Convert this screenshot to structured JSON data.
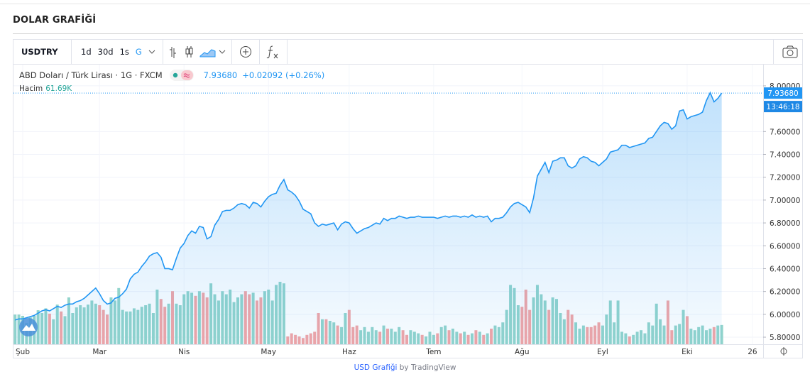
{
  "header": {
    "title": "DOLAR GRAFİĞİ"
  },
  "toolbar": {
    "symbol": "USDTRY",
    "intervals": [
      "1d",
      "30d",
      "1s",
      "G"
    ],
    "active_interval": 3
  },
  "chart_data": {
    "type": "area",
    "title": "ABD Doları / Türk Lirası · 1G · FXCM",
    "last_label": "7.93680",
    "change_label": "+0.02092 (+0.26%)",
    "time_label": "13:46:18",
    "categories": [
      null,
      null,
      "Şub",
      null,
      null,
      null,
      null,
      null,
      null,
      null,
      null,
      null,
      null,
      null,
      null,
      null,
      null,
      null,
      null,
      null,
      null,
      null,
      "Mar",
      null,
      null,
      null,
      null,
      null,
      null,
      null,
      null,
      null,
      null,
      null,
      null,
      null,
      null,
      null,
      null,
      null,
      null,
      null,
      null,
      null,
      "Nis",
      null,
      null,
      null,
      null,
      null,
      null,
      null,
      null,
      null,
      null,
      null,
      null,
      null,
      null,
      null,
      null,
      null,
      null,
      null,
      null,
      null,
      "May",
      null,
      null,
      null,
      null,
      null,
      null,
      null,
      null,
      null,
      null,
      null,
      null,
      null,
      null,
      null,
      null,
      null,
      null,
      null,
      null,
      "Haz",
      null,
      null,
      null,
      null,
      null,
      null,
      null,
      null,
      null,
      null,
      null,
      null,
      null,
      null,
      null,
      null,
      null,
      null,
      null,
      null,
      null,
      "Tem",
      null,
      null,
      null,
      null,
      null,
      null,
      null,
      null,
      null,
      null,
      null,
      null,
      null,
      null,
      null,
      null,
      null,
      null,
      null,
      null,
      null,
      null,
      "Ağu",
      null,
      null,
      null,
      null,
      null,
      null,
      null,
      null,
      null,
      null,
      null,
      null,
      null,
      null,
      null,
      null,
      null,
      null,
      null,
      null,
      "Eyl",
      null,
      null,
      null,
      null,
      null,
      null,
      null,
      null,
      null,
      null,
      null,
      null,
      null,
      null,
      null,
      null,
      null,
      null,
      null,
      null,
      null,
      "Eki",
      null,
      null,
      null,
      null,
      null,
      null,
      null,
      null,
      null,
      null,
      null,
      null,
      null,
      null,
      null,
      null,
      "26"
    ],
    "series": [
      {
        "color": "#2196f3",
        "values": [
          5.95,
          5.96,
          5.96,
          5.97,
          5.98,
          5.99,
          6.01,
          6.03,
          6.04,
          6.03,
          6.05,
          6.07,
          6.06,
          6.08,
          6.09,
          6.09,
          6.11,
          6.12,
          6.14,
          6.17,
          6.2,
          6.23,
          6.18,
          6.12,
          6.09,
          6.1,
          6.14,
          6.15,
          6.18,
          6.22,
          6.31,
          6.35,
          6.37,
          6.42,
          6.46,
          6.51,
          6.53,
          6.54,
          6.5,
          6.4,
          6.4,
          6.39,
          6.49,
          6.58,
          6.62,
          6.69,
          6.73,
          6.71,
          6.77,
          6.76,
          6.66,
          6.68,
          6.78,
          6.83,
          6.9,
          6.91,
          6.91,
          6.93,
          6.96,
          6.97,
          6.96,
          6.93,
          6.98,
          6.97,
          6.94,
          6.99,
          7.03,
          7.05,
          7.06,
          7.13,
          7.18,
          7.09,
          7.07,
          7.04,
          6.99,
          6.92,
          6.9,
          6.88,
          6.8,
          6.77,
          6.79,
          6.78,
          6.79,
          6.8,
          6.74,
          6.79,
          6.81,
          6.8,
          6.75,
          6.71,
          6.73,
          6.75,
          6.76,
          6.78,
          6.8,
          6.79,
          6.84,
          6.82,
          6.84,
          6.84,
          6.86,
          6.85,
          6.84,
          6.85,
          6.85,
          6.86,
          6.85,
          6.85,
          6.85,
          6.85,
          6.84,
          6.85,
          6.86,
          6.85,
          6.86,
          6.86,
          6.85,
          6.86,
          6.85,
          6.87,
          6.85,
          6.86,
          6.85,
          6.86,
          6.81,
          6.84,
          6.84,
          6.85,
          6.89,
          6.94,
          6.97,
          6.98,
          6.96,
          6.94,
          6.89,
          7.02,
          7.21,
          7.27,
          7.33,
          7.24,
          7.34,
          7.35,
          7.37,
          7.37,
          7.3,
          7.28,
          7.3,
          7.36,
          7.38,
          7.37,
          7.34,
          7.33,
          7.3,
          7.33,
          7.36,
          7.42,
          7.43,
          7.44,
          7.48,
          7.48,
          7.46,
          7.47,
          7.48,
          7.49,
          7.5,
          7.54,
          7.55,
          7.6,
          7.65,
          7.68,
          7.67,
          7.62,
          7.65,
          7.78,
          7.79,
          7.71,
          7.73,
          7.74,
          7.75,
          7.77,
          7.87,
          7.94,
          7.86,
          7.89,
          7.9368,
          null,
          null,
          null,
          null,
          null,
          null,
          null,
          null
        ]
      },
      {
        "name": "Hacim",
        "type": "volume",
        "value_label": "61.69K",
        "up_color": "#92d4cc",
        "down_color": "#f2a5a6",
        "values": [
          95,
          95,
          91,
          68,
          86,
          91,
          109,
          100,
          115,
          98,
          80,
          127,
          105,
          90,
          150,
          100,
          118,
          125,
          118,
          127,
          140,
          130,
          125,
          110,
          95,
          150,
          140,
          180,
          110,
          105,
          105,
          115,
          110,
          120,
          125,
          130,
          100,
          175,
          145,
          120,
          130,
          170,
          130,
          125,
          160,
          170,
          165,
          155,
          170,
          165,
          150,
          195,
          160,
          140,
          170,
          160,
          175,
          135,
          150,
          160,
          170,
          160,
          165,
          140,
          150,
          170,
          175,
          140,
          190,
          200,
          195,
          25,
          35,
          30,
          25,
          20,
          30,
          35,
          40,
          100,
          80,
          80,
          75,
          70,
          60,
          55,
          100,
          110,
          55,
          60,
          45,
          55,
          40,
          55,
          45,
          40,
          60,
          50,
          50,
          40,
          55,
          45,
          30,
          45,
          40,
          35,
          30,
          25,
          40,
          30,
          35,
          55,
          60,
          45,
          50,
          40,
          35,
          40,
          30,
          35,
          45,
          40,
          30,
          35,
          50,
          60,
          55,
          70,
          110,
          190,
          180,
          125,
          120,
          175,
          110,
          150,
          190,
          160,
          140,
          110,
          150,
          145,
          100,
          80,
          110,
          95,
          70,
          50,
          60,
          55,
          55,
          60,
          70,
          60,
          95,
          140,
          70,
          140,
          40,
          35,
          25,
          30,
          40,
          45,
          35,
          70,
          60,
          130,
          80,
          60,
          140,
          45,
          60,
          65,
          110,
          90,
          50,
          45,
          55,
          60,
          45,
          50,
          55,
          60,
          61.69,
          null,
          null,
          null,
          null,
          null,
          null,
          null,
          null
        ]
      }
    ],
    "ylim": [
      5.738,
      8.186
    ],
    "vlim": [
      0,
      250
    ],
    "yticks": [
      {
        "value": 5.8,
        "label": "5.80000"
      },
      {
        "value": 6.0,
        "label": "6.00000"
      },
      {
        "value": 6.2,
        "label": "6.20000"
      },
      {
        "value": 6.4,
        "label": "6.40000"
      },
      {
        "value": 6.6,
        "label": "6.60000"
      },
      {
        "value": 6.8,
        "label": "6.80000"
      },
      {
        "value": 7.0,
        "label": "7.00000"
      },
      {
        "value": 7.2,
        "label": "7.20000"
      },
      {
        "value": 7.4,
        "label": "7.40000"
      },
      {
        "value": 7.6,
        "label": "7.60000"
      },
      {
        "value": 8.0,
        "label": "8.00000"
      }
    ],
    "grid": true
  },
  "footer": {
    "link": "USD Grafiği",
    "text": "by TradingView"
  }
}
